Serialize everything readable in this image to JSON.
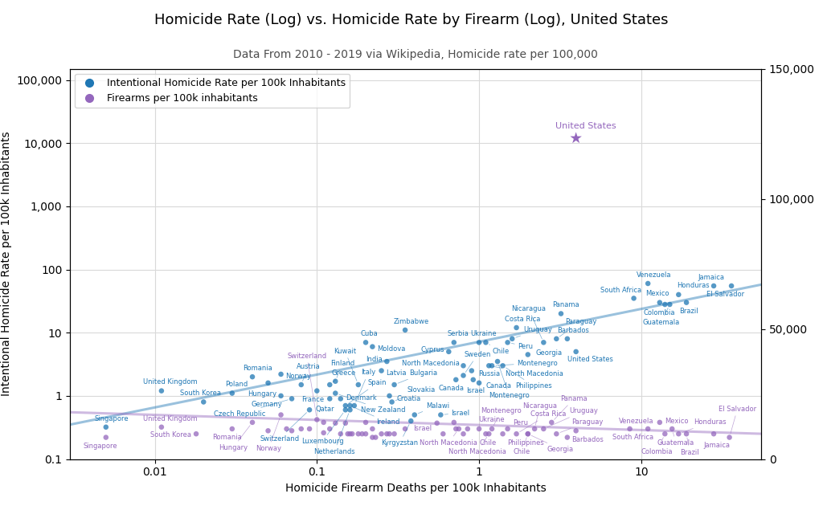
{
  "chart_data": {
    "type": "scatter",
    "title": "Homicide Rate (Log) vs. Homicide Rate by Firearm (Log), United States",
    "subtitle": "Data From 2010 - 2019 via Wikipedia, Homicide rate per 100,000",
    "xlabel": "Homicide Firearm Deaths per 100k Inhabitants",
    "ylabel": "Intentional Homicide Rate per 100k Inhabitants",
    "log": true,
    "grid": true,
    "legend": "upper left",
    "xlim": [
      0.003,
      55
    ],
    "xticks": [
      0.01,
      0.1,
      1,
      10
    ],
    "ylim": [
      0.1,
      150000
    ],
    "yticks": [
      0.1,
      1,
      10,
      100,
      {
        "value": 1000,
        "label": "1,000"
      },
      {
        "value": 10000,
        "label": "10,000"
      },
      {
        "value": 100000,
        "label": "100,000"
      }
    ],
    "y2lim": [
      0,
      150000
    ],
    "y2ticks": [
      0,
      {
        "value": 50000,
        "label": "50,000"
      },
      {
        "value": 100000,
        "label": "100,000"
      },
      {
        "value": 150000,
        "label": "150,000"
      }
    ],
    "series": [
      {
        "name": "Intentional Homicide Rate per 100k Inhabitants",
        "color": "#1f77b4",
        "marker": "circle",
        "x": [
          0.005,
          0.011,
          0.02,
          0.03,
          0.04,
          0.05,
          0.06,
          0.06,
          0.08,
          0.07,
          0.09,
          0.1,
          0.12,
          0.12,
          0.13,
          0.13,
          0.14,
          0.15,
          0.15,
          0.16,
          0.16,
          0.17,
          0.18,
          0.2,
          0.22,
          0.25,
          0.27,
          0.28,
          0.29,
          0.3,
          0.35,
          0.38,
          0.4,
          0.58,
          0.65,
          0.7,
          0.72,
          0.8,
          0.8,
          0.9,
          0.92,
          1.0,
          1.0,
          1.1,
          1.15,
          1.2,
          1.3,
          1.4,
          1.5,
          1.6,
          1.7,
          2.0,
          3.96,
          3.5,
          3.2,
          2.5,
          3.0,
          9.0,
          11.0,
          13.0,
          14.0,
          15.0,
          17.0,
          19.0,
          28.0,
          36.0
        ],
        "values": [
          0.32,
          1.2,
          0.8,
          1.1,
          2.0,
          1.6,
          2.2,
          1.0,
          1.5,
          0.9,
          0.6,
          1.2,
          1.5,
          0.9,
          1.7,
          1.1,
          0.9,
          0.6,
          0.7,
          0.6,
          0.7,
          0.7,
          1.5,
          7.0,
          6.0,
          2.5,
          3.5,
          1.0,
          0.8,
          1.5,
          11.0,
          0.4,
          0.5,
          0.5,
          5.0,
          7.0,
          1.8,
          3.0,
          2.1,
          2.5,
          1.8,
          1.6,
          7.0,
          7.0,
          3.0,
          3.0,
          3.5,
          3.0,
          7.0,
          8.0,
          12.0,
          4.5,
          5.0,
          8.0,
          20.0,
          7.0,
          8.0,
          35.0,
          60.0,
          30.0,
          28.0,
          28.0,
          40.0,
          30.0,
          55.0,
          55.0
        ],
        "point_labels": [
          "Singapore",
          "United Kingdom",
          "South Korea",
          "Poland",
          "Romania",
          "Hungary",
          "Norway",
          "Germany",
          "Austria",
          "Czech Republic",
          "Switzerland",
          "France",
          "Greece",
          "Qatar",
          "Finland",
          "New Zealand",
          "Denmark",
          "Luxembourg",
          "Spain",
          "Netherlands",
          "Ireland",
          "Italy",
          "Kuwait",
          "Cuba",
          "Moldova",
          "Latvia",
          "India",
          "Croatia",
          "Slovakia",
          "Bulgaria",
          "Zimbabwe",
          "Kyrgyzstan",
          "Malawi",
          "Israel",
          "Cyprus",
          "Serbia",
          "Canada",
          "North Macedonia",
          "Sweden",
          "Russia",
          "Israel",
          "Canada",
          "Ukraine",
          "Chile",
          "North Macedonia",
          "Montenegro",
          "Montenegro",
          "Philippines",
          "Peru",
          "Uruguay",
          "Costa Rica",
          "Georgia",
          "United States",
          "Barbados",
          "Panama",
          "Nicaragua",
          "Paraguay",
          "South Africa",
          "Venezuela",
          "Mexico",
          "Colombia",
          "Guatemala",
          "Honduras",
          "Brazil",
          "Jamaica",
          "El Salvador"
        ],
        "trend_x": [
          0.003,
          55
        ],
        "trend_values": [
          0.35,
          57.6705
        ]
      },
      {
        "name": "Firearms per 100k inhabitants",
        "color": "#9467bd",
        "marker": "circle",
        "x": [
          0.005,
          0.011,
          0.018,
          0.03,
          0.04,
          0.05,
          0.06,
          0.065,
          0.07,
          0.08,
          0.09,
          0.1,
          0.11,
          0.11,
          0.12,
          0.13,
          0.14,
          0.15,
          0.155,
          0.16,
          0.165,
          0.18,
          0.19,
          0.2,
          0.2,
          0.22,
          0.22,
          0.23,
          0.27,
          0.25,
          0.28,
          0.35,
          0.3,
          0.55,
          0.6,
          0.7,
          0.75,
          0.72,
          0.8,
          0.85,
          1.0,
          1.1,
          1.15,
          1.2,
          1.4,
          1.5,
          1.7,
          2.0,
          2.2,
          2.0,
          2.5,
          3.0,
          2.8,
          3.5,
          3.96,
          11.0,
          8.5,
          13.0,
          15.5,
          14.0,
          17.0,
          19.0,
          28.0,
          35.0
        ],
        "values": [
          0.22,
          0.32,
          0.25,
          0.3,
          0.38,
          0.28,
          0.5,
          0.3,
          0.28,
          0.3,
          0.3,
          0.42,
          0.38,
          0.26,
          0.3,
          0.37,
          0.25,
          0.37,
          0.25,
          0.25,
          0.25,
          0.25,
          0.25,
          0.25,
          0.38,
          0.3,
          0.22,
          0.22,
          0.25,
          0.25,
          0.25,
          0.3,
          0.25,
          0.37,
          0.25,
          0.38,
          0.3,
          0.3,
          0.25,
          0.3,
          0.3,
          0.25,
          0.25,
          0.3,
          0.25,
          0.3,
          0.25,
          0.25,
          0.3,
          0.25,
          0.3,
          0.25,
          0.38,
          0.22,
          0.28,
          0.3,
          0.3,
          0.38,
          0.3,
          0.25,
          0.25,
          0.25,
          0.25,
          0.22
        ],
        "point_labels": [
          "Singapore",
          "United Kingdom",
          "South Korea",
          "Romania",
          "Hungary",
          null,
          "Norway",
          null,
          null,
          null,
          null,
          "Switzerland",
          null,
          null,
          null,
          null,
          null,
          null,
          null,
          null,
          null,
          null,
          null,
          null,
          null,
          null,
          null,
          null,
          null,
          null,
          null,
          null,
          null,
          "Israel",
          null,
          null,
          "North Macedonia",
          null,
          null,
          null,
          "Ukraine",
          "Chile",
          "North Macedonia",
          "Montenegro",
          "Philippines",
          "Peru",
          "Costa Rica",
          "Chile",
          "Nicaragua",
          "Georgia",
          "Uruguay",
          "Paraguay",
          "Panama",
          "Barbados",
          null,
          "Venezuela",
          "South Africa",
          "Mexico",
          "Guatemala",
          "Colombia",
          "Honduras",
          "Brazil",
          "Jamaica",
          "El Salvador"
        ],
        "trend_x": [
          0.003,
          55
        ],
        "trend_values": [
          0.55,
          0.25079
        ]
      },
      {
        "color": "#9467bd",
        "marker": "star",
        "x": [
          3.96
        ],
        "values": [
          12000
        ],
        "point_labels": [
          "United States"
        ]
      }
    ]
  }
}
